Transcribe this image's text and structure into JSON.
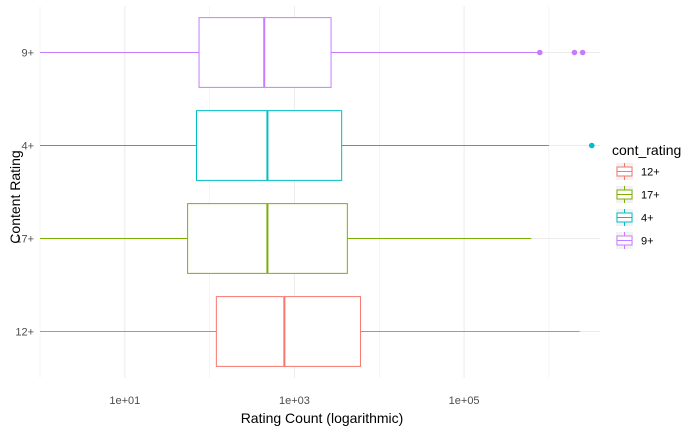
{
  "chart_data": {
    "type": "boxplot",
    "orientation": "horizontal",
    "title": "",
    "xlabel": "Rating Count (logarithmic)",
    "ylabel": "Content Rating",
    "x_scale": "log10",
    "xlim": [
      1,
      4000000
    ],
    "x_ticks": [
      {
        "value": 10,
        "label": "1e+01"
      },
      {
        "value": 1000,
        "label": "1e+03"
      },
      {
        "value": 100000,
        "label": "1e+05"
      }
    ],
    "grid": true,
    "legend": {
      "title": "cont_rating",
      "position": "right"
    },
    "categories": [
      "12+",
      "17+",
      "4+",
      "9+"
    ],
    "series": [
      {
        "name": "12+",
        "color": "#F8766D",
        "whisker_low": 1,
        "q1": 120,
        "median": 760,
        "q3": 6000,
        "whisker_high": 2300000,
        "outliers": []
      },
      {
        "name": "17+",
        "color": "#7CAE00",
        "whisker_low": 1,
        "q1": 55,
        "median": 480,
        "q3": 4200,
        "whisker_high": 620000,
        "outliers": []
      },
      {
        "name": "4+",
        "color": "#00BFC4",
        "whisker_low": 1,
        "q1": 70,
        "median": 480,
        "q3": 3600,
        "whisker_high": 1000000,
        "outliers": [
          3200000
        ]
      },
      {
        "name": "9+",
        "color": "#C77CFF",
        "whisker_low": 1,
        "q1": 75,
        "median": 440,
        "q3": 2700,
        "whisker_high": 780000,
        "outliers": [
          780000,
          2000000,
          2500000
        ]
      }
    ]
  }
}
